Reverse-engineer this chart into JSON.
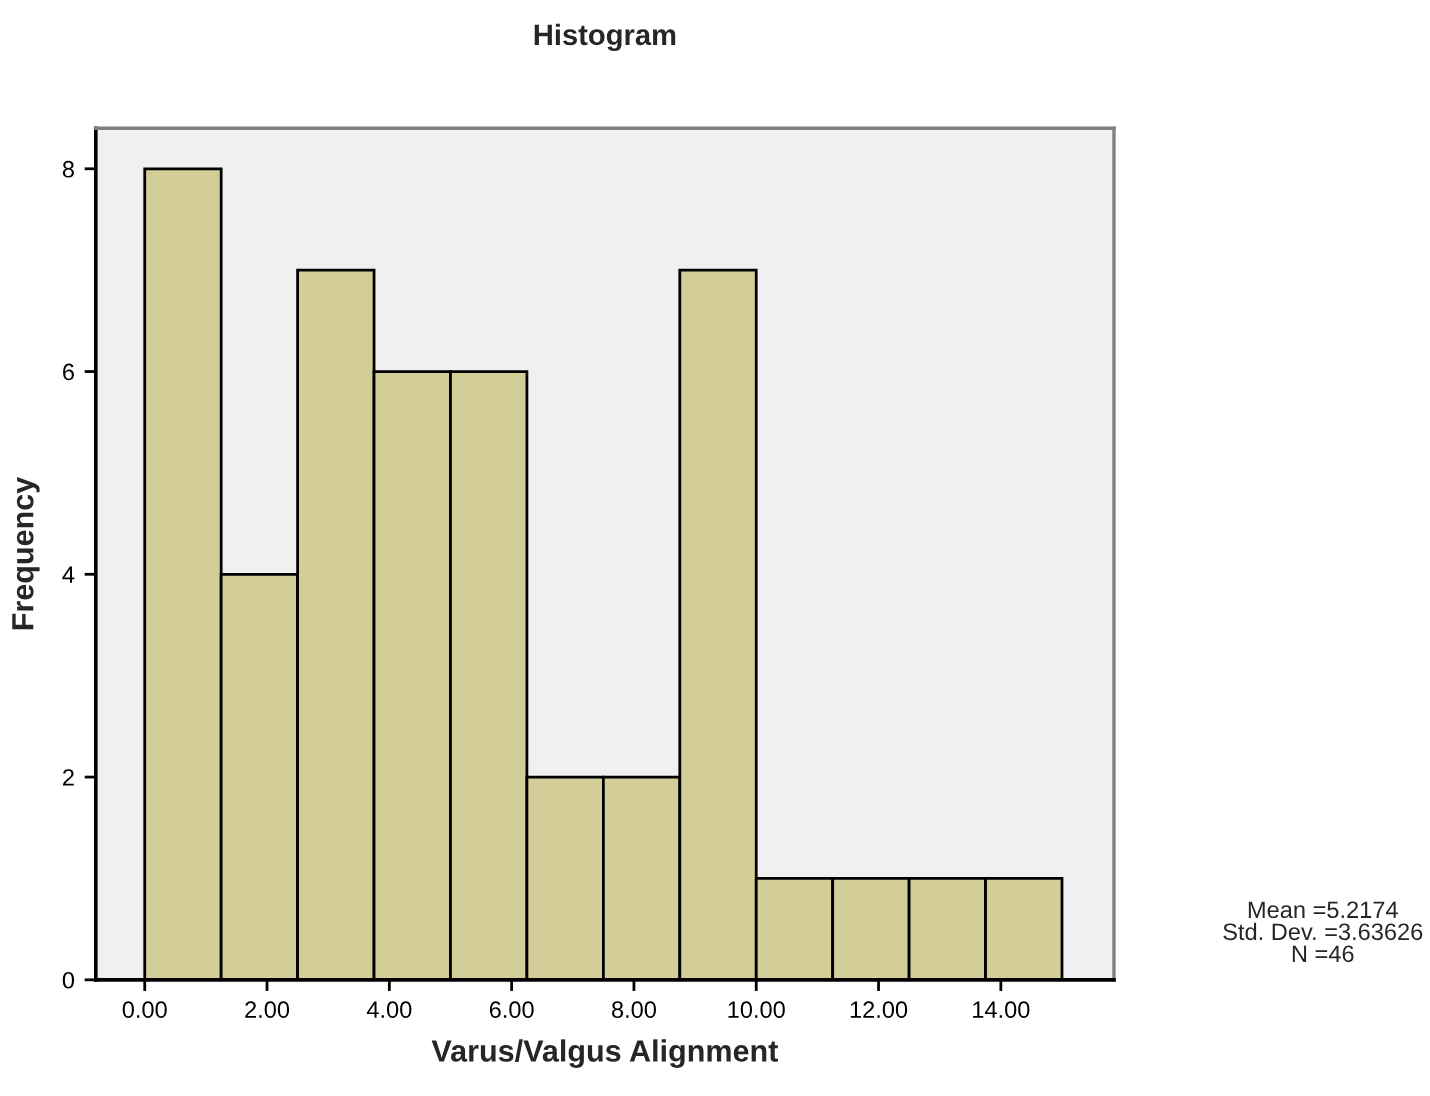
{
  "chart_data": {
    "type": "histogram",
    "title": "Histogram",
    "xlabel": "Varus/Valgus Alignment",
    "ylabel": "Frequency",
    "bins": [
      0,
      1.25,
      2.5,
      3.75,
      5,
      6.25,
      7.5,
      8.75,
      10,
      11.25,
      12.5,
      13.75,
      15
    ],
    "values": [
      8,
      4,
      7,
      6,
      6,
      2,
      2,
      7,
      1,
      1,
      1,
      1
    ],
    "color": "#d3ce97",
    "xlim": [
      -0.8,
      15.85
    ],
    "ylim": [
      0,
      8.4
    ],
    "xticks": [
      {
        "value": 0,
        "label": "0.00"
      },
      {
        "value": 2,
        "label": "2.00"
      },
      {
        "value": 4,
        "label": "4.00"
      },
      {
        "value": 6,
        "label": "6.00"
      },
      {
        "value": 8,
        "label": "8.00"
      },
      {
        "value": 10,
        "label": "10.00"
      },
      {
        "value": 12,
        "label": "12.00"
      },
      {
        "value": 14,
        "label": "14.00"
      }
    ],
    "yticks": [
      0,
      2,
      4,
      6,
      8
    ],
    "annotations": [
      "Mean =5.2174\nStd. Dev. =3.63626\nN =46"
    ],
    "grid": false,
    "legend": false
  }
}
